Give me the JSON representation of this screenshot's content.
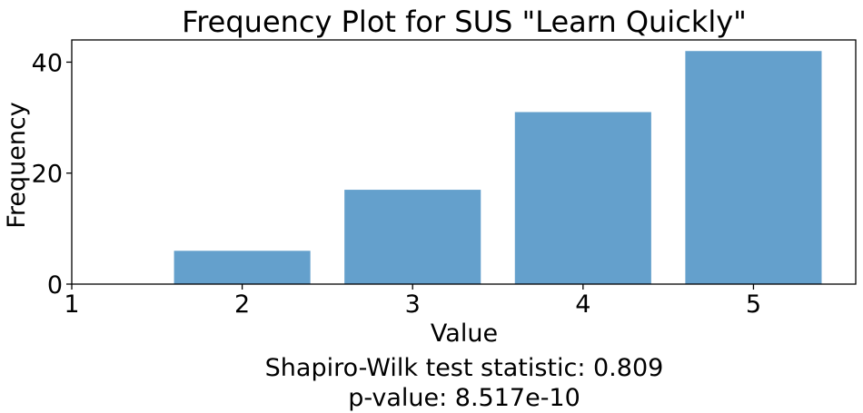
{
  "chart_data": {
    "type": "bar",
    "title": "Frequency Plot for SUS \"Learn Quickly\"",
    "xlabel": "Value",
    "ylabel": "Frequency",
    "categories": [
      2,
      3,
      4,
      5
    ],
    "values": [
      6,
      17,
      31,
      42
    ],
    "xlim": [
      1,
      5.6
    ],
    "ylim": [
      0,
      44
    ],
    "xticks": [
      "1",
      "2",
      "3",
      "4",
      "5"
    ],
    "yticks": [
      "0",
      "20",
      "40"
    ],
    "bar_color": "#64a0cc",
    "grid": false,
    "annotations": [
      "Shapiro-Wilk test statistic: 0.809",
      "p-value: 8.517e-10"
    ]
  }
}
